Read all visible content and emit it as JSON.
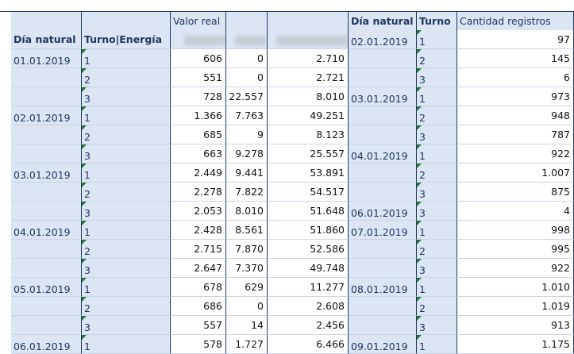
{
  "header": {
    "valor_real": "Valor real",
    "dia_natural": "Día natural",
    "turno_energia": "Turno|Energía",
    "dia_natural_right": "Día natural",
    "turno_right": "Turno",
    "cantidad_registros": "Cantidad registros"
  },
  "colors": {
    "header_bg": "#dbe5f3",
    "border": "#1f3864",
    "text": "#1f3864",
    "corner_marker": "#1e7a2e"
  },
  "left_table": [
    {
      "dia": "01.01.2019",
      "turno": "1",
      "v1": "606",
      "v2": "0",
      "v3": "2.710"
    },
    {
      "dia": "",
      "turno": "2",
      "v1": "551",
      "v2": "0",
      "v3": "2.721"
    },
    {
      "dia": "",
      "turno": "3",
      "v1": "728",
      "v2": "22.557",
      "v3": "8.010"
    },
    {
      "dia": "02.01.2019",
      "turno": "1",
      "v1": "1.366",
      "v2": "7.763",
      "v3": "49.251"
    },
    {
      "dia": "",
      "turno": "2",
      "v1": "685",
      "v2": "9",
      "v3": "8.123"
    },
    {
      "dia": "",
      "turno": "3",
      "v1": "663",
      "v2": "9.278",
      "v3": "25.557"
    },
    {
      "dia": "03.01.2019",
      "turno": "1",
      "v1": "2.449",
      "v2": "9.441",
      "v3": "53.891"
    },
    {
      "dia": "",
      "turno": "2",
      "v1": "2.278",
      "v2": "7.822",
      "v3": "54.517"
    },
    {
      "dia": "",
      "turno": "3",
      "v1": "2.053",
      "v2": "8.010",
      "v3": "51.648"
    },
    {
      "dia": "04.01.2019",
      "turno": "1",
      "v1": "2.428",
      "v2": "8.561",
      "v3": "51.860"
    },
    {
      "dia": "",
      "turno": "2",
      "v1": "2.715",
      "v2": "7.870",
      "v3": "52.586"
    },
    {
      "dia": "",
      "turno": "3",
      "v1": "2.647",
      "v2": "7.370",
      "v3": "49.748"
    },
    {
      "dia": "05.01.2019",
      "turno": "1",
      "v1": "678",
      "v2": "629",
      "v3": "11.277"
    },
    {
      "dia": "",
      "turno": "2",
      "v1": "686",
      "v2": "0",
      "v3": "2.608"
    },
    {
      "dia": "",
      "turno": "3",
      "v1": "557",
      "v2": "14",
      "v3": "2.456"
    },
    {
      "dia": "06.01.2019",
      "turno": "1",
      "v1": "578",
      "v2": "1.727",
      "v3": "6.466"
    }
  ],
  "right_table": [
    {
      "dia": "02.01.2019",
      "turno": "1",
      "cantidad": "97"
    },
    {
      "dia": "",
      "turno": "2",
      "cantidad": "145"
    },
    {
      "dia": "",
      "turno": "3",
      "cantidad": "6"
    },
    {
      "dia": "03.01.2019",
      "turno": "1",
      "cantidad": "973"
    },
    {
      "dia": "",
      "turno": "2",
      "cantidad": "948"
    },
    {
      "dia": "",
      "turno": "3",
      "cantidad": "787"
    },
    {
      "dia": "04.01.2019",
      "turno": "1",
      "cantidad": "922"
    },
    {
      "dia": "",
      "turno": "2",
      "cantidad": "1.007"
    },
    {
      "dia": "",
      "turno": "3",
      "cantidad": "875"
    },
    {
      "dia": "06.01.2019",
      "turno": "3",
      "cantidad": "4"
    },
    {
      "dia": "07.01.2019",
      "turno": "1",
      "cantidad": "998"
    },
    {
      "dia": "",
      "turno": "2",
      "cantidad": "995"
    },
    {
      "dia": "",
      "turno": "3",
      "cantidad": "922"
    },
    {
      "dia": "08.01.2019",
      "turno": "1",
      "cantidad": "1.010"
    },
    {
      "dia": "",
      "turno": "2",
      "cantidad": "1.019"
    },
    {
      "dia": "",
      "turno": "3",
      "cantidad": "913"
    },
    {
      "dia": "09.01.2019",
      "turno": "1",
      "cantidad": "1.175"
    }
  ]
}
